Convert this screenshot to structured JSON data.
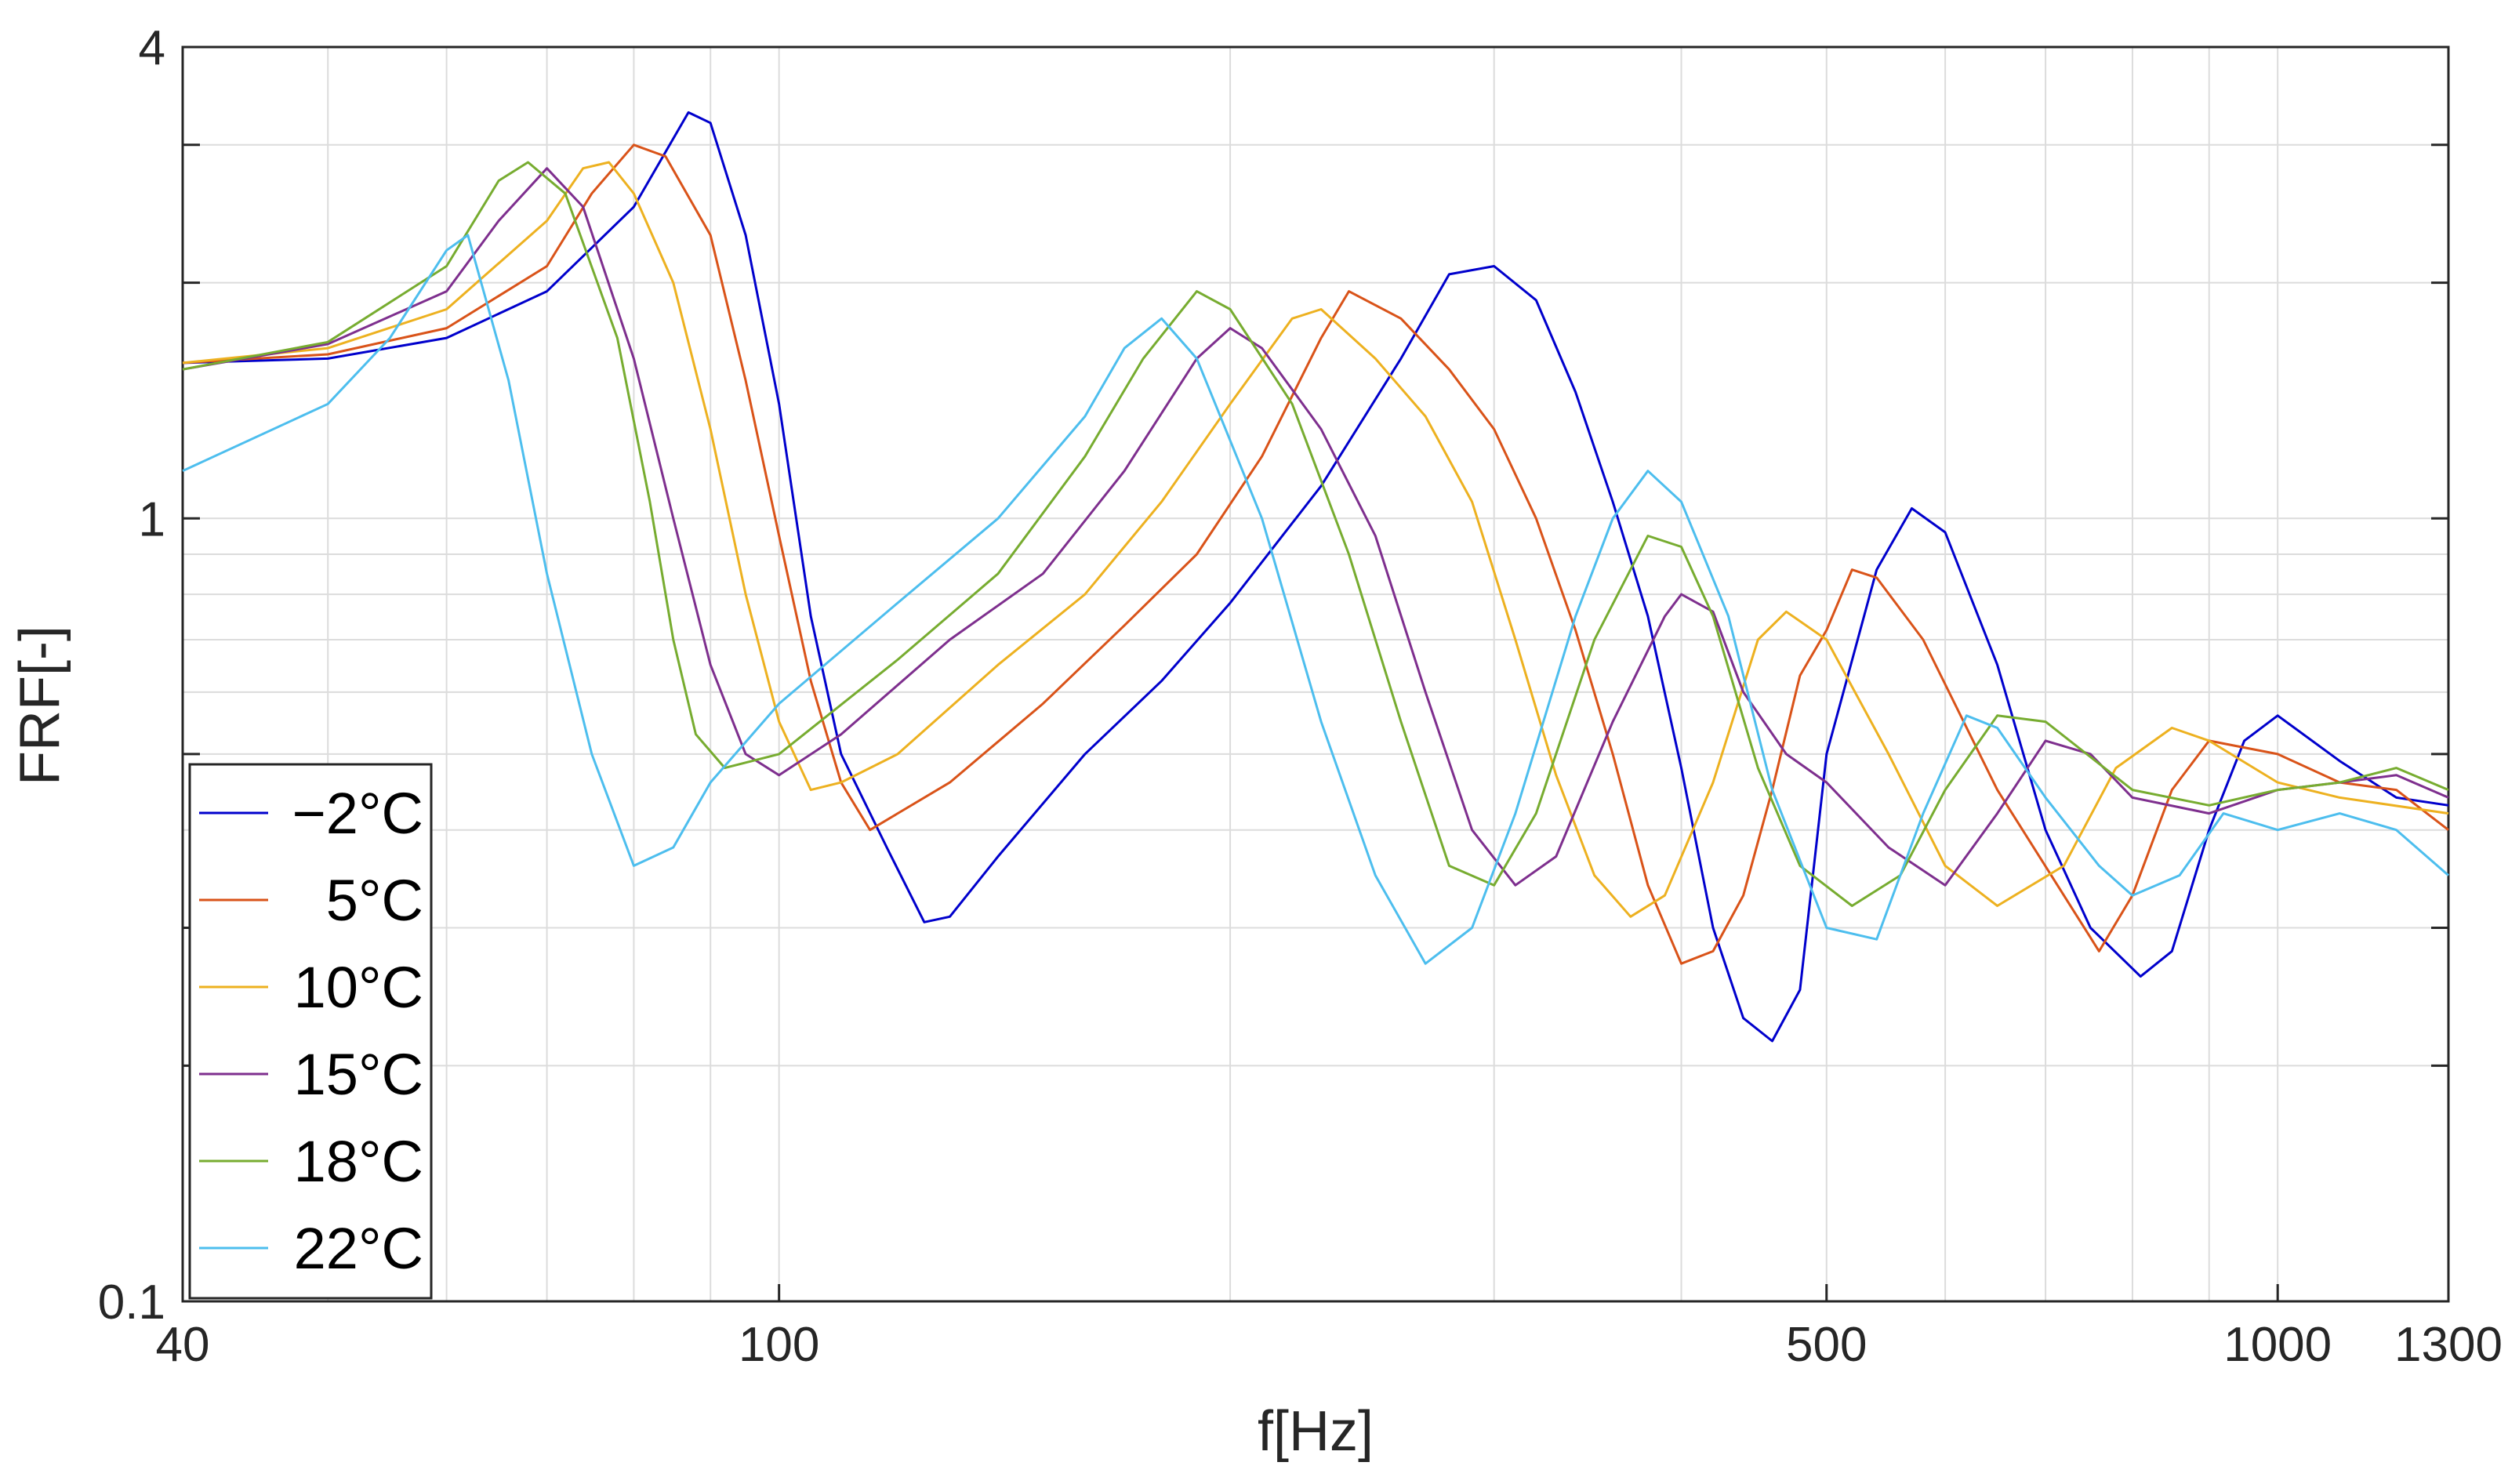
{
  "chart_data": {
    "type": "line",
    "xlabel": "f[Hz]",
    "ylabel": "FRF[-]",
    "x_scale": "log",
    "y_scale": "log",
    "xlim": [
      40,
      1300
    ],
    "ylim": [
      0.1,
      4
    ],
    "x_ticks": [
      {
        "value": 40,
        "label": "40"
      },
      {
        "value": 100,
        "label": "100"
      },
      {
        "value": 500,
        "label": "500"
      },
      {
        "value": 1000,
        "label": "1000"
      },
      {
        "value": 1300,
        "label": "1300"
      }
    ],
    "y_ticks": [
      {
        "value": 0.1,
        "label": "0.1"
      },
      {
        "value": 1,
        "label": "1"
      },
      {
        "value": 4,
        "label": "4"
      }
    ],
    "grid": true,
    "legend_position": "bottom-left",
    "series": [
      {
        "name": "−2°C",
        "color": "#0000cc",
        "points": [
          [
            40,
            1.58
          ],
          [
            50,
            1.6
          ],
          [
            60,
            1.7
          ],
          [
            70,
            1.95
          ],
          [
            80,
            2.5
          ],
          [
            87,
            3.3
          ],
          [
            90,
            3.2
          ],
          [
            95,
            2.3
          ],
          [
            100,
            1.4
          ],
          [
            105,
            0.75
          ],
          [
            110,
            0.5
          ],
          [
            118,
            0.38
          ],
          [
            125,
            0.305
          ],
          [
            130,
            0.31
          ],
          [
            140,
            0.37
          ],
          [
            160,
            0.5
          ],
          [
            180,
            0.62
          ],
          [
            200,
            0.78
          ],
          [
            230,
            1.1
          ],
          [
            260,
            1.6
          ],
          [
            280,
            2.05
          ],
          [
            300,
            2.1
          ],
          [
            320,
            1.9
          ],
          [
            340,
            1.45
          ],
          [
            360,
            1.05
          ],
          [
            380,
            0.75
          ],
          [
            400,
            0.48
          ],
          [
            420,
            0.3
          ],
          [
            440,
            0.23
          ],
          [
            460,
            0.215
          ],
          [
            480,
            0.25
          ],
          [
            500,
            0.5
          ],
          [
            540,
            0.86
          ],
          [
            570,
            1.03
          ],
          [
            600,
            0.96
          ],
          [
            650,
            0.65
          ],
          [
            700,
            0.4
          ],
          [
            750,
            0.3
          ],
          [
            810,
            0.26
          ],
          [
            850,
            0.28
          ],
          [
            900,
            0.4
          ],
          [
            950,
            0.52
          ],
          [
            1000,
            0.56
          ],
          [
            1100,
            0.49
          ],
          [
            1200,
            0.44
          ],
          [
            1300,
            0.43
          ]
        ]
      },
      {
        "name": " 5°C",
        "color": "#d95319",
        "points": [
          [
            40,
            1.58
          ],
          [
            50,
            1.62
          ],
          [
            60,
            1.75
          ],
          [
            70,
            2.1
          ],
          [
            75,
            2.6
          ],
          [
            80,
            3.0
          ],
          [
            84,
            2.9
          ],
          [
            90,
            2.3
          ],
          [
            95,
            1.5
          ],
          [
            100,
            0.95
          ],
          [
            105,
            0.62
          ],
          [
            110,
            0.46
          ],
          [
            115,
            0.4
          ],
          [
            120,
            0.42
          ],
          [
            130,
            0.46
          ],
          [
            150,
            0.58
          ],
          [
            170,
            0.73
          ],
          [
            190,
            0.9
          ],
          [
            210,
            1.2
          ],
          [
            230,
            1.7
          ],
          [
            240,
            1.95
          ],
          [
            260,
            1.8
          ],
          [
            280,
            1.55
          ],
          [
            300,
            1.3
          ],
          [
            320,
            1.0
          ],
          [
            340,
            0.72
          ],
          [
            360,
            0.5
          ],
          [
            380,
            0.34
          ],
          [
            400,
            0.27
          ],
          [
            420,
            0.28
          ],
          [
            440,
            0.33
          ],
          [
            460,
            0.45
          ],
          [
            480,
            0.63
          ],
          [
            500,
            0.72
          ],
          [
            520,
            0.86
          ],
          [
            540,
            0.84
          ],
          [
            580,
            0.7
          ],
          [
            650,
            0.45
          ],
          [
            720,
            0.33
          ],
          [
            760,
            0.28
          ],
          [
            800,
            0.33
          ],
          [
            850,
            0.45
          ],
          [
            900,
            0.52
          ],
          [
            1000,
            0.5
          ],
          [
            1100,
            0.46
          ],
          [
            1200,
            0.45
          ],
          [
            1300,
            0.4
          ]
        ]
      },
      {
        "name": "10°C",
        "color": "#edb120",
        "points": [
          [
            40,
            1.58
          ],
          [
            50,
            1.65
          ],
          [
            60,
            1.85
          ],
          [
            70,
            2.4
          ],
          [
            74,
            2.8
          ],
          [
            77,
            2.85
          ],
          [
            80,
            2.6
          ],
          [
            85,
            2.0
          ],
          [
            90,
            1.3
          ],
          [
            95,
            0.8
          ],
          [
            100,
            0.55
          ],
          [
            105,
            0.45
          ],
          [
            110,
            0.46
          ],
          [
            120,
            0.5
          ],
          [
            140,
            0.65
          ],
          [
            160,
            0.8
          ],
          [
            180,
            1.05
          ],
          [
            200,
            1.4
          ],
          [
            220,
            1.8
          ],
          [
            230,
            1.85
          ],
          [
            250,
            1.6
          ],
          [
            270,
            1.35
          ],
          [
            290,
            1.05
          ],
          [
            310,
            0.7
          ],
          [
            330,
            0.47
          ],
          [
            350,
            0.35
          ],
          [
            370,
            0.31
          ],
          [
            390,
            0.33
          ],
          [
            420,
            0.46
          ],
          [
            450,
            0.7
          ],
          [
            470,
            0.76
          ],
          [
            500,
            0.7
          ],
          [
            550,
            0.5
          ],
          [
            600,
            0.36
          ],
          [
            650,
            0.32
          ],
          [
            720,
            0.36
          ],
          [
            780,
            0.48
          ],
          [
            850,
            0.54
          ],
          [
            900,
            0.52
          ],
          [
            1000,
            0.46
          ],
          [
            1100,
            0.44
          ],
          [
            1300,
            0.42
          ]
        ]
      },
      {
        "name": "15°C",
        "color": "#7e2f8e",
        "points": [
          [
            40,
            1.55
          ],
          [
            50,
            1.67
          ],
          [
            60,
            1.95
          ],
          [
            65,
            2.4
          ],
          [
            70,
            2.8
          ],
          [
            74,
            2.5
          ],
          [
            80,
            1.6
          ],
          [
            85,
            1.0
          ],
          [
            90,
            0.65
          ],
          [
            95,
            0.5
          ],
          [
            100,
            0.47
          ],
          [
            110,
            0.53
          ],
          [
            130,
            0.7
          ],
          [
            150,
            0.85
          ],
          [
            170,
            1.15
          ],
          [
            190,
            1.6
          ],
          [
            200,
            1.75
          ],
          [
            210,
            1.65
          ],
          [
            230,
            1.3
          ],
          [
            250,
            0.95
          ],
          [
            270,
            0.6
          ],
          [
            290,
            0.4
          ],
          [
            310,
            0.34
          ],
          [
            330,
            0.37
          ],
          [
            360,
            0.55
          ],
          [
            390,
            0.75
          ],
          [
            400,
            0.8
          ],
          [
            420,
            0.76
          ],
          [
            440,
            0.6
          ],
          [
            470,
            0.5
          ],
          [
            500,
            0.46
          ],
          [
            550,
            0.38
          ],
          [
            600,
            0.34
          ],
          [
            650,
            0.42
          ],
          [
            700,
            0.52
          ],
          [
            750,
            0.5
          ],
          [
            800,
            0.44
          ],
          [
            900,
            0.42
          ],
          [
            1000,
            0.45
          ],
          [
            1100,
            0.46
          ],
          [
            1200,
            0.47
          ],
          [
            1300,
            0.44
          ]
        ]
      },
      {
        "name": "18°C",
        "color": "#77ac30",
        "points": [
          [
            40,
            1.55
          ],
          [
            50,
            1.68
          ],
          [
            60,
            2.1
          ],
          [
            65,
            2.7
          ],
          [
            68,
            2.85
          ],
          [
            72,
            2.6
          ],
          [
            78,
            1.7
          ],
          [
            82,
            1.05
          ],
          [
            85,
            0.7
          ],
          [
            88,
            0.53
          ],
          [
            92,
            0.48
          ],
          [
            100,
            0.5
          ],
          [
            120,
            0.66
          ],
          [
            140,
            0.85
          ],
          [
            160,
            1.2
          ],
          [
            175,
            1.6
          ],
          [
            190,
            1.95
          ],
          [
            200,
            1.85
          ],
          [
            220,
            1.4
          ],
          [
            240,
            0.9
          ],
          [
            260,
            0.55
          ],
          [
            280,
            0.36
          ],
          [
            300,
            0.34
          ],
          [
            320,
            0.42
          ],
          [
            350,
            0.7
          ],
          [
            380,
            0.95
          ],
          [
            400,
            0.92
          ],
          [
            420,
            0.75
          ],
          [
            450,
            0.48
          ],
          [
            480,
            0.36
          ],
          [
            520,
            0.32
          ],
          [
            560,
            0.35
          ],
          [
            600,
            0.45
          ],
          [
            650,
            0.56
          ],
          [
            700,
            0.55
          ],
          [
            800,
            0.45
          ],
          [
            900,
            0.43
          ],
          [
            1000,
            0.45
          ],
          [
            1100,
            0.46
          ],
          [
            1200,
            0.48
          ],
          [
            1300,
            0.45
          ]
        ]
      },
      {
        "name": "22°C",
        "color": "#4dbeee",
        "points": [
          [
            40,
            1.15
          ],
          [
            50,
            1.4
          ],
          [
            55,
            1.7
          ],
          [
            60,
            2.2
          ],
          [
            62,
            2.3
          ],
          [
            66,
            1.5
          ],
          [
            70,
            0.85
          ],
          [
            75,
            0.5
          ],
          [
            80,
            0.36
          ],
          [
            85,
            0.38
          ],
          [
            90,
            0.46
          ],
          [
            100,
            0.58
          ],
          [
            120,
            0.78
          ],
          [
            140,
            1.0
          ],
          [
            160,
            1.35
          ],
          [
            170,
            1.65
          ],
          [
            180,
            1.8
          ],
          [
            190,
            1.6
          ],
          [
            210,
            1.0
          ],
          [
            230,
            0.55
          ],
          [
            250,
            0.35
          ],
          [
            270,
            0.27
          ],
          [
            290,
            0.3
          ],
          [
            310,
            0.42
          ],
          [
            340,
            0.75
          ],
          [
            360,
            1.0
          ],
          [
            380,
            1.15
          ],
          [
            400,
            1.05
          ],
          [
            430,
            0.75
          ],
          [
            460,
            0.45
          ],
          [
            500,
            0.3
          ],
          [
            540,
            0.29
          ],
          [
            580,
            0.42
          ],
          [
            620,
            0.56
          ],
          [
            650,
            0.54
          ],
          [
            700,
            0.44
          ],
          [
            760,
            0.36
          ],
          [
            800,
            0.33
          ],
          [
            860,
            0.35
          ],
          [
            920,
            0.42
          ],
          [
            1000,
            0.4
          ],
          [
            1100,
            0.42
          ],
          [
            1200,
            0.4
          ],
          [
            1300,
            0.35
          ]
        ]
      }
    ]
  }
}
